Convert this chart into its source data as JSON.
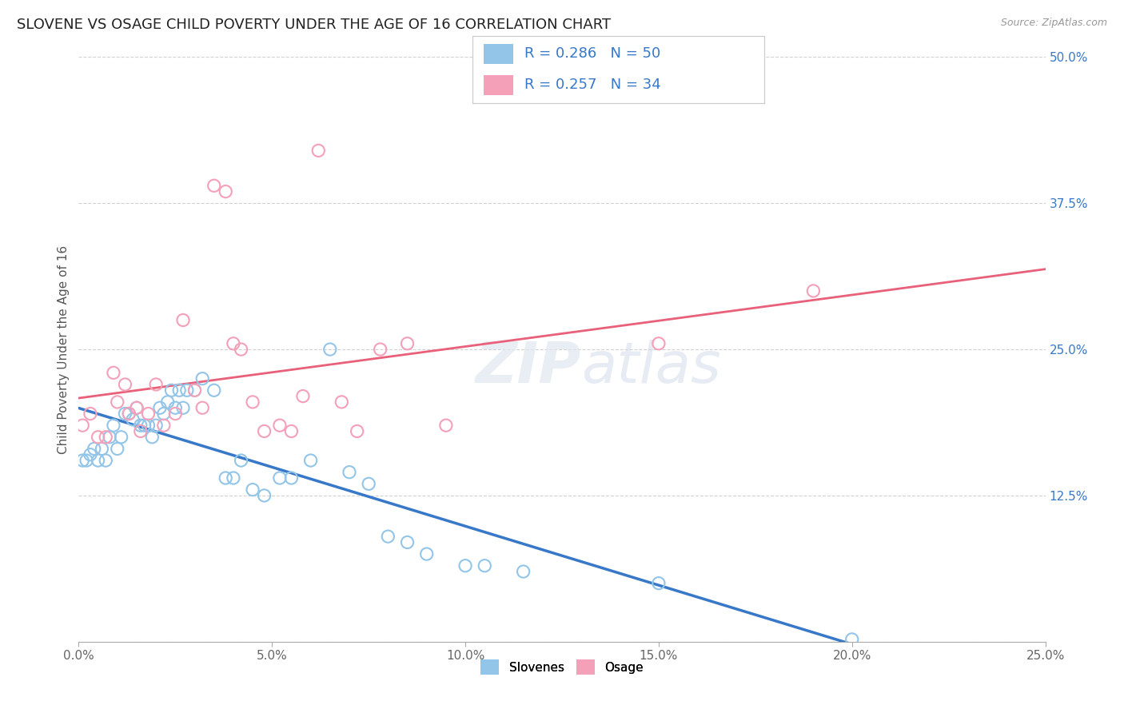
{
  "title": "SLOVENE VS OSAGE CHILD POVERTY UNDER THE AGE OF 16 CORRELATION CHART",
  "source": "Source: ZipAtlas.com",
  "ylabel": "Child Poverty Under the Age of 16",
  "xlabel_label_slovenes": "Slovenes",
  "xlabel_label_osage": "Osage",
  "xlim": [
    0.0,
    0.25
  ],
  "ylim": [
    0.0,
    0.5
  ],
  "xticks": [
    0.0,
    0.05,
    0.1,
    0.15,
    0.2,
    0.25
  ],
  "yticks": [
    0.0,
    0.125,
    0.25,
    0.375,
    0.5
  ],
  "xtick_labels": [
    "0.0%",
    "5.0%",
    "10.0%",
    "15.0%",
    "20.0%",
    "25.0%"
  ],
  "ytick_labels": [
    "",
    "12.5%",
    "25.0%",
    "37.5%",
    "50.0%"
  ],
  "legend_r_slovenes": "R = 0.286",
  "legend_n_slovenes": "N = 50",
  "legend_r_osage": "R = 0.257",
  "legend_n_osage": "N = 34",
  "slovene_color": "#92C5E8",
  "osage_color": "#F4A0B8",
  "line_slovene_color": "#3878C8",
  "line_osage_color": "#E8607A",
  "background_color": "#ffffff",
  "grid_color": "#cccccc",
  "title_fontsize": 13,
  "axis_label_fontsize": 11,
  "tick_fontsize": 11,
  "slovenes_x": [
    0.001,
    0.002,
    0.003,
    0.004,
    0.005,
    0.006,
    0.007,
    0.008,
    0.009,
    0.01,
    0.011,
    0.012,
    0.013,
    0.014,
    0.015,
    0.016,
    0.017,
    0.018,
    0.019,
    0.02,
    0.021,
    0.022,
    0.023,
    0.024,
    0.025,
    0.026,
    0.027,
    0.028,
    0.03,
    0.032,
    0.035,
    0.038,
    0.04,
    0.042,
    0.045,
    0.048,
    0.052,
    0.055,
    0.06,
    0.065,
    0.07,
    0.075,
    0.08,
    0.085,
    0.09,
    0.1,
    0.105,
    0.115,
    0.15,
    0.2
  ],
  "slovenes_y": [
    0.155,
    0.155,
    0.16,
    0.165,
    0.155,
    0.165,
    0.155,
    0.175,
    0.185,
    0.165,
    0.175,
    0.195,
    0.195,
    0.19,
    0.2,
    0.185,
    0.185,
    0.185,
    0.175,
    0.185,
    0.2,
    0.195,
    0.205,
    0.215,
    0.2,
    0.215,
    0.2,
    0.215,
    0.215,
    0.225,
    0.215,
    0.14,
    0.14,
    0.155,
    0.13,
    0.125,
    0.14,
    0.14,
    0.155,
    0.25,
    0.145,
    0.135,
    0.09,
    0.085,
    0.075,
    0.065,
    0.065,
    0.06,
    0.05,
    0.002
  ],
  "osage_x": [
    0.001,
    0.003,
    0.005,
    0.007,
    0.009,
    0.01,
    0.012,
    0.013,
    0.015,
    0.016,
    0.018,
    0.02,
    0.022,
    0.025,
    0.027,
    0.03,
    0.032,
    0.035,
    0.038,
    0.04,
    0.042,
    0.045,
    0.048,
    0.052,
    0.055,
    0.058,
    0.062,
    0.068,
    0.072,
    0.078,
    0.085,
    0.095,
    0.15,
    0.19
  ],
  "osage_y": [
    0.185,
    0.195,
    0.175,
    0.175,
    0.23,
    0.205,
    0.22,
    0.195,
    0.2,
    0.18,
    0.195,
    0.22,
    0.185,
    0.195,
    0.275,
    0.215,
    0.2,
    0.39,
    0.385,
    0.255,
    0.25,
    0.205,
    0.18,
    0.185,
    0.18,
    0.21,
    0.42,
    0.205,
    0.18,
    0.25,
    0.255,
    0.185,
    0.255,
    0.3
  ]
}
